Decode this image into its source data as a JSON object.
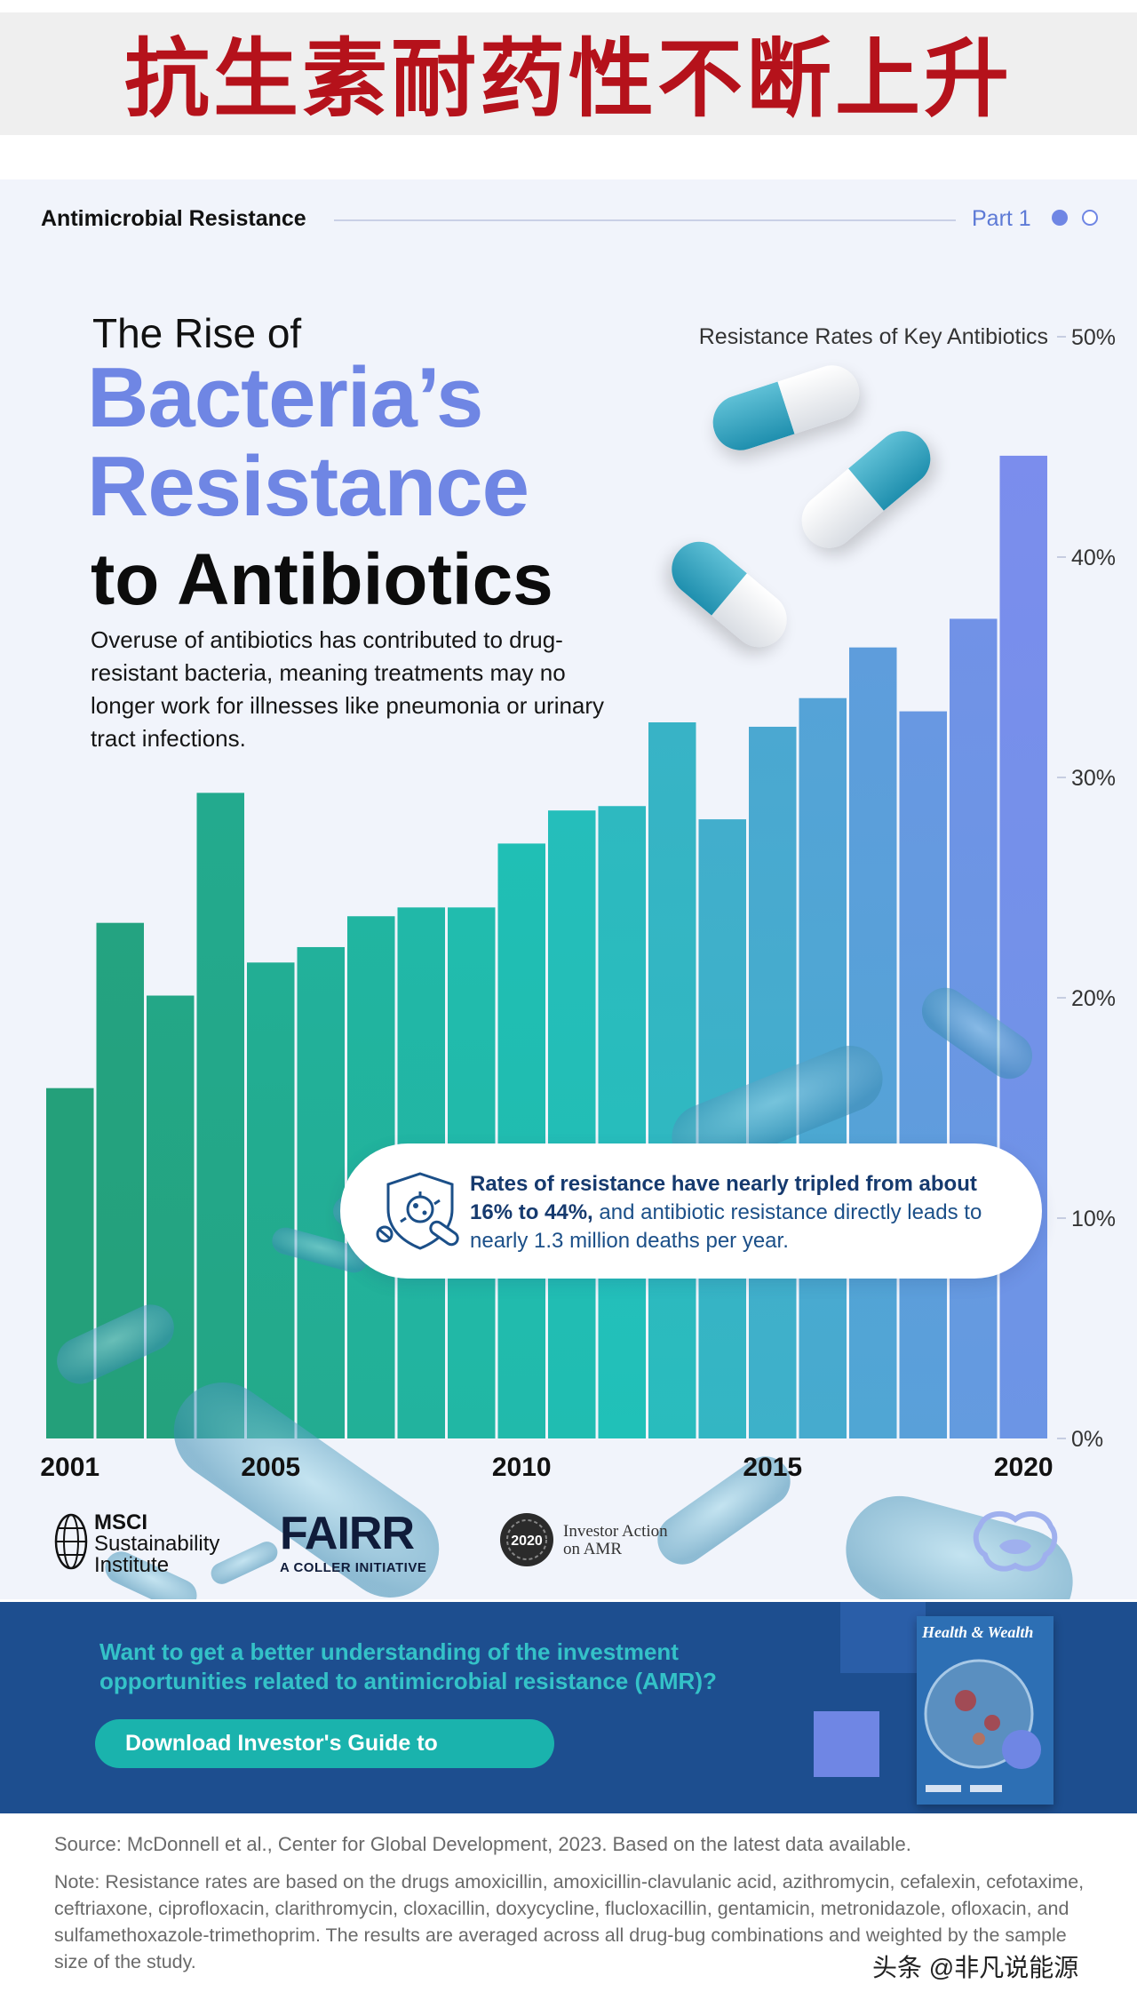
{
  "banner": {
    "title": "抗生素耐药性不断上升"
  },
  "header": {
    "section_label": "Antimicrobial Resistance",
    "part_label": "Part 1"
  },
  "hero": {
    "pre_title": "The Rise of",
    "title_line1": "Bacteria’s",
    "title_line2": "Resistance",
    "title_line3": "to Antibiotics",
    "description": "Overuse of antibiotics has contributed to drug-resistant bacteria, meaning treatments may no longer work for illnesses like pneumonia or urinary tract infections."
  },
  "chart_data": {
    "type": "bar",
    "title": "Resistance Rates of Key Antibiotics",
    "categories": [
      "2001",
      "2002",
      "2003",
      "2004",
      "2005",
      "2006",
      "2007",
      "2008",
      "2009",
      "2010",
      "2011",
      "2012",
      "2013",
      "2014",
      "2015",
      "2016",
      "2017",
      "2018",
      "2019",
      "2020"
    ],
    "values": [
      15.9,
      23.4,
      20.1,
      29.3,
      21.6,
      22.3,
      23.7,
      24.1,
      24.1,
      27.0,
      28.5,
      28.7,
      32.5,
      28.1,
      32.3,
      33.6,
      35.9,
      33.0,
      37.2,
      44.6
    ],
    "x_tick_labels": [
      "2001",
      "2005",
      "2010",
      "2015",
      "2020"
    ],
    "y_tick_labels": [
      "0%",
      "10%",
      "20%",
      "30%",
      "40%",
      "50%"
    ],
    "ylim": [
      0,
      50
    ],
    "y_unit": "%",
    "color_start": "#24a07a",
    "color_mid": "#20c1b8",
    "color_end": "#7b8ded",
    "legend": "none"
  },
  "callout": {
    "text_bold": "Rates of resistance have nearly tripled from about 16% to 44%,",
    "text_rest": " and antibiotic resistance directly leads to nearly 1.3 million deaths per year.",
    "icon": "shield-bacteria-pill-icon"
  },
  "logos": {
    "msci_line1": "MSCI",
    "msci_line2": "Sustainability",
    "msci_line3": "Institute",
    "fairr_word": "FAIRR",
    "fairr_sub": "A COLLER INITIATIVE",
    "ia_badge": "2020",
    "ia_line1": "Investor Action",
    "ia_line2": "on AMR"
  },
  "cta": {
    "question": "Want to get a better understanding of the investment opportunities related to antimicrobial resistance (AMR)?",
    "button_label": "Download Investor's Guide to",
    "report_title": "Health & Wealth"
  },
  "footer": {
    "source": "Source: McDonnell et al., Center for Global Development, 2023. Based on the latest data available.",
    "note": "Note: Resistance rates are based on the drugs amoxicillin, amoxicillin-clavulanic acid, azithromycin, cefalexin, cefotaxime, ceftriaxone, ciprofloxacin, clarithromycin, cloxacillin, doxycycline, flucloxacillin, gentamicin, metronidazole, ofloxacin, and sulfamethoxazole-trimethoprim. The results are averaged across all drug-bug combinations and weighted by the sample size of the study.",
    "watermark": "头条 @非凡说能源"
  }
}
